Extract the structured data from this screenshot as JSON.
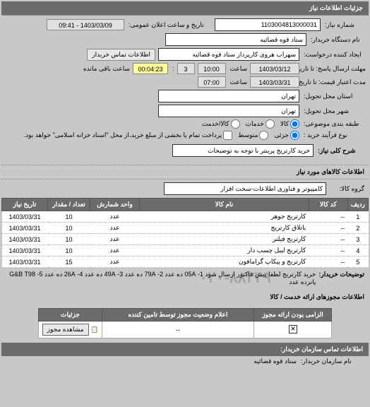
{
  "section1_title": "جزئیات اطلاعات نیاز",
  "request_number": {
    "label": "شماره نیاز:",
    "value": "1103004813000031"
  },
  "announce_time": {
    "label": "تاریخ و ساعت اعلان عمومی:",
    "value": "1403/03/09 - 09:41"
  },
  "buyer_org": {
    "label": "نام دستگاه خریدار:",
    "value": "ستاد قوه قضائیه"
  },
  "requester": {
    "label": "ایجاد کننده درخواست:",
    "value": "سهراب هروی کارپرداز ستاد قوه قضائیه"
  },
  "contact_btn": "اطلاعات تماس خریدار",
  "deadline_send": {
    "label": "مهلت ارسال پاسخ: تا تاریخ:",
    "date": "1403/03/12",
    "time_label": "ساعت",
    "time": "10:00",
    "remaining_days": "3",
    "remaining_time": "00:04:23",
    "remaining_label": "ساعت باقی مانده"
  },
  "validity": {
    "label": "مدت اعتبار قیمت: تا تاریخ:",
    "date": "1403/03/31",
    "time_label": "ساعت",
    "time": "07:00"
  },
  "delivery_province": {
    "label": "استان محل تحویل:",
    "value": "تهران"
  },
  "delivery_city": {
    "label": "شهر محل تحویل:",
    "value": "تهران"
  },
  "packaging": {
    "label": "طبقه بندی موضوعی:",
    "options": [
      {
        "key": "kala",
        "label": "کالا",
        "checked": true
      },
      {
        "key": "khadamat",
        "label": "خدمات",
        "checked": false
      },
      {
        "key": "both",
        "label": "کالا/خدمت",
        "checked": false
      }
    ]
  },
  "purchase_process": {
    "label": "نوع فرآیند خرید :",
    "options": [
      {
        "key": "low",
        "label": "جزئی",
        "checked": true
      },
      {
        "key": "mid",
        "label": "متوسط",
        "checked": false
      }
    ],
    "note": "پرداخت تمام یا بخشی از مبلغ خرید،از محل \"اسناد خزانه اسلامی\" خواهد بود."
  },
  "need_title": {
    "label": "شرح کلی نیاز:",
    "value": "خرید کارتریج پرینتر با توجه به توضیحات"
  },
  "items_header": "اطلاعات کالاهای مورد نیاز",
  "group": {
    "label": "گروه کالا:",
    "value": "کامپیوتر و فناوری اطلاعات-سخت افزار"
  },
  "items_table": {
    "columns": [
      "ردیف",
      "کد کالا",
      "نام کالا",
      "واحد شمارش",
      "تعداد / مقدار",
      "تاریخ نیاز"
    ],
    "rows": [
      [
        "1",
        "--",
        "کارتریج جوهر",
        "عدد",
        "10",
        "1403/03/31"
      ],
      [
        "2",
        "--",
        "باتلاق کارتریج",
        "عدد",
        "10",
        "1403/03/31"
      ],
      [
        "3",
        "--",
        "کارتریج فیلتر",
        "عدد",
        "10",
        "1403/03/31"
      ],
      [
        "4",
        "--",
        "کارتریج لیبل چسب دار",
        "عدد",
        "10",
        "1403/03/31"
      ],
      [
        "5",
        "--",
        "کارتریج و پیکاپ گرامافون",
        "عدد",
        "15",
        "1403/03/31"
      ]
    ]
  },
  "buyer_desc": {
    "label": "توضیحات خریدار:",
    "text": "خرید کارتریج لطفا پیش فاکتور ارسال شود 1- 05A ده عدد 2- 79A ده عدد 3- 49A ده عدد 4- 26A ده عدد 5- G&B T98 پانزده عدد"
  },
  "license_section": "اطلاعات مجوزهای ارائه خدمت / کالا",
  "license_table": {
    "columns": [
      "الزامی بودن ارائه مجوز",
      "اعلام وضعیت مجوز توسط تامین کننده",
      "جزئیات"
    ],
    "row": {
      "mandatory_checked": true,
      "status": "--",
      "icon": "📋",
      "btn": "مشاهده مجوز"
    }
  },
  "footer": {
    "left": "اطلاعات تماس سازمان خریدار:",
    "right_label": "نام سازمان خریدار:",
    "right_value": "ستاد قوه قضائیه"
  },
  "watermark": "۰۲۰-۸۸۳۴۹"
}
